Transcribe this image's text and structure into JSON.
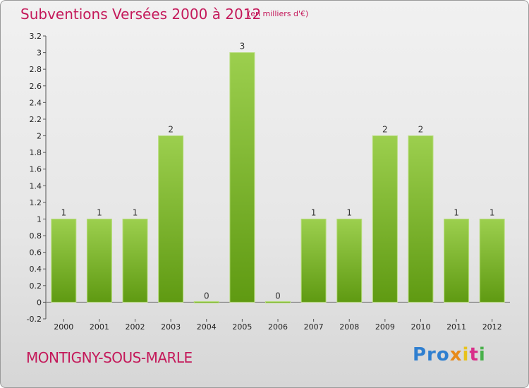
{
  "chart_data": {
    "type": "bar",
    "title": "Subventions Versées 2000 à 2012",
    "unit_note": "(en milliers d'€)",
    "categories": [
      "2000",
      "2001",
      "2002",
      "2003",
      "2004",
      "2005",
      "2006",
      "2007",
      "2008",
      "2009",
      "2010",
      "2011",
      "2012"
    ],
    "values": [
      1,
      1,
      1,
      2,
      0,
      3,
      0,
      1,
      1,
      2,
      2,
      1,
      1
    ],
    "data_labels": [
      "1",
      "1",
      "1",
      "2",
      "0",
      "3",
      "0",
      "1",
      "1",
      "2",
      "2",
      "1",
      "1"
    ],
    "y_ticks": [
      "-0.2",
      "0",
      "0.2",
      "0.4",
      "0.6",
      "0.8",
      "1",
      "1.2",
      "1.4",
      "1.6",
      "1.8",
      "2",
      "2.2",
      "2.4",
      "2.6",
      "2.8",
      "3",
      "3.2"
    ],
    "ylim": [
      -0.2,
      3.2
    ],
    "grid": false,
    "legend": "none",
    "bar_color_top": "#9ccf4e",
    "bar_color_bottom": "#5f9a12"
  },
  "footer": {
    "commune": "MONTIGNY-SOUS-MARLE",
    "logo": {
      "p1": "Pro",
      "p2": "x",
      "p3": "i",
      "p4": "t",
      "p5": "i"
    }
  }
}
